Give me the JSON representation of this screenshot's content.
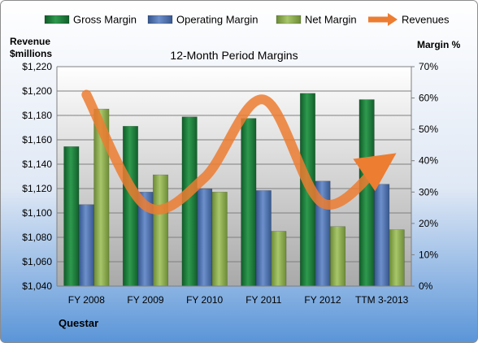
{
  "chart_data": {
    "type": "bar",
    "title": "12-Month Period Margins",
    "company": "Questar",
    "categories": [
      "FY 2008",
      "FY 2009",
      "FY 2010",
      "FY 2011",
      "FY 2012",
      "TTM 3-2013"
    ],
    "left_axis": {
      "label_line1": "Revenue",
      "label_line2": "$millions",
      "range": [
        1040,
        1220
      ],
      "ticks": [
        "$1,040",
        "$1,060",
        "$1,080",
        "$1,100",
        "$1,120",
        "$1,140",
        "$1,160",
        "$1,180",
        "$1,200",
        "$1,220"
      ]
    },
    "right_axis": {
      "label": "Margin %",
      "range": [
        0,
        70
      ],
      "ticks": [
        "0%",
        "10%",
        "20%",
        "30%",
        "40%",
        "50%",
        "60%",
        "70%"
      ]
    },
    "series": [
      {
        "name": "Gross Margin",
        "axis": "right",
        "color": "#1f7a3a",
        "values": [
          44.5,
          51,
          54,
          53.5,
          61.5,
          59.5
        ]
      },
      {
        "name": "Operating Margin",
        "axis": "right",
        "color": "#4a6fad",
        "values": [
          26,
          30,
          31,
          30.5,
          33.5,
          32.5
        ]
      },
      {
        "name": "Net Margin",
        "axis": "right",
        "color": "#8aab4c",
        "values": [
          56.5,
          35.5,
          30,
          17.5,
          19,
          18
        ]
      },
      {
        "name": "Revenues",
        "axis": "left",
        "color": "#ec7d31",
        "line": true,
        "values": [
          1197,
          1106,
          1129,
          1193,
          1108,
          1141
        ]
      }
    ],
    "legend_position": "top",
    "grid": true
  }
}
